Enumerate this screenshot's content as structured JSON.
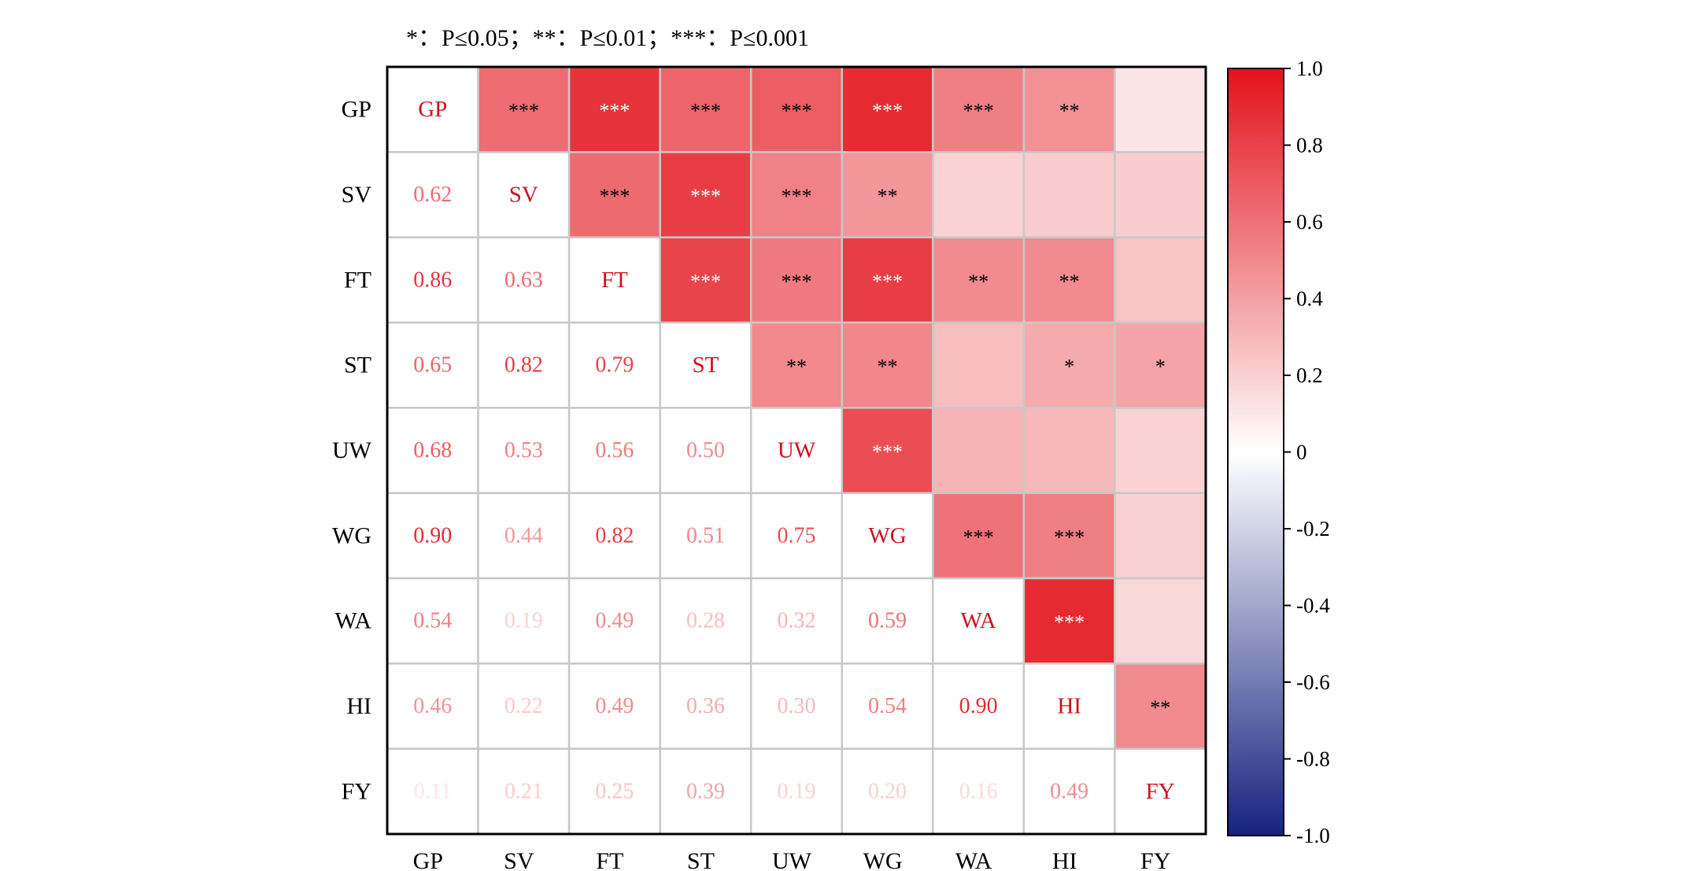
{
  "significance_note": "*：P≤0.05；**：P≤0.01；***：P≤0.001",
  "chart_data": {
    "type": "heatmap",
    "labels": [
      "GP",
      "SV",
      "FT",
      "ST",
      "UW",
      "WG",
      "WA",
      "HI",
      "FY"
    ],
    "lower_values": [
      [
        null,
        null,
        null,
        null,
        null,
        null,
        null,
        null,
        null
      ],
      [
        0.62,
        null,
        null,
        null,
        null,
        null,
        null,
        null,
        null
      ],
      [
        0.86,
        0.63,
        null,
        null,
        null,
        null,
        null,
        null,
        null
      ],
      [
        0.65,
        0.82,
        0.79,
        null,
        null,
        null,
        null,
        null,
        null
      ],
      [
        0.68,
        0.53,
        0.56,
        0.5,
        null,
        null,
        null,
        null,
        null
      ],
      [
        0.9,
        0.44,
        0.82,
        0.51,
        0.75,
        null,
        null,
        null,
        null
      ],
      [
        0.54,
        0.19,
        0.49,
        0.28,
        0.32,
        0.59,
        null,
        null,
        null
      ],
      [
        0.46,
        0.22,
        0.49,
        0.36,
        0.3,
        0.54,
        0.9,
        null,
        null
      ],
      [
        0.11,
        0.21,
        0.25,
        0.39,
        0.19,
        0.2,
        0.16,
        0.49,
        null
      ]
    ],
    "upper_significance": [
      [
        null,
        "***",
        "***",
        "***",
        "***",
        "***",
        "***",
        "**",
        ""
      ],
      [
        null,
        null,
        "***",
        "***",
        "***",
        "**",
        "",
        "",
        ""
      ],
      [
        null,
        null,
        null,
        "***",
        "***",
        "***",
        "**",
        "**",
        ""
      ],
      [
        null,
        null,
        null,
        null,
        "**",
        "**",
        "",
        "*",
        "*"
      ],
      [
        null,
        null,
        null,
        null,
        null,
        "***",
        "",
        "",
        ""
      ],
      [
        null,
        null,
        null,
        null,
        null,
        null,
        "***",
        "***",
        ""
      ],
      [
        null,
        null,
        null,
        null,
        null,
        null,
        null,
        "***",
        ""
      ],
      [
        null,
        null,
        null,
        null,
        null,
        null,
        null,
        null,
        "**"
      ],
      [
        null,
        null,
        null,
        null,
        null,
        null,
        null,
        null,
        null
      ]
    ],
    "colorbar": {
      "range": [
        -1.0,
        1.0
      ],
      "tick_labels": [
        "1.0",
        "0.8",
        "0.6",
        "0.4",
        "0.2",
        "0",
        "-0.2",
        "-0.4",
        "-0.6",
        "-0.8",
        "-1.0"
      ],
      "colors": {
        "positive": "#e3121b",
        "neutral": "#ffffff",
        "negative": "#16237f"
      }
    },
    "grid": true
  }
}
